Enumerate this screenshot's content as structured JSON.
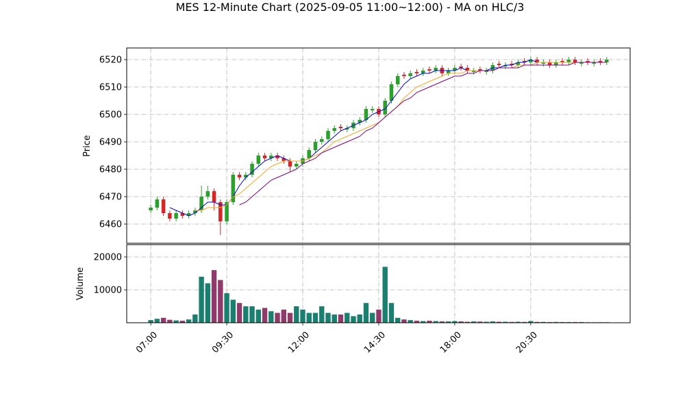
{
  "chart_data": [
    {
      "type": "candlestick",
      "title": "MES 12-Minute Chart (2025-09-05 11:00~12:00) - MA on HLC/3",
      "ylabel": "Price",
      "up_color": "#2ca02c",
      "down_color": "#d62728",
      "grid": true,
      "xlim": [
        -3.8,
        75.7
      ],
      "ylim": [
        6453,
        6524.25
      ],
      "yticks": [
        6460,
        6470,
        6480,
        6490,
        6500,
        6510,
        6520
      ],
      "open": [
        6465,
        6466,
        6469,
        6464,
        6462,
        6464,
        6463,
        6464,
        6465,
        6470,
        6472,
        6468,
        6461,
        6468,
        6478,
        6477,
        6478,
        6482,
        6485,
        6484,
        6485,
        6484,
        6483,
        6481,
        6482,
        6484,
        6487,
        6490,
        6491,
        6494,
        6495.5,
        6494.5,
        6495,
        6497,
        6498,
        6501.5,
        6502,
        6500,
        6505,
        6511,
        6514.5,
        6514,
        6515.5,
        6515,
        6516.5,
        6516,
        6517,
        6515,
        6516,
        6517.5,
        6517,
        6515.5,
        6516.5,
        6515.5,
        6516,
        6518.5,
        6517.5,
        6518.5,
        6518,
        6519.5,
        6519,
        6520,
        6518.5,
        6519,
        6518,
        6519.5,
        6519,
        6520,
        6518.5,
        6519.5,
        6518.5,
        6519.5,
        6519
      ],
      "high": [
        6467,
        6470,
        6470,
        6465,
        6465,
        6465,
        6465,
        6466,
        6474,
        6474,
        6473,
        6469,
        6469,
        6479,
        6479,
        6479,
        6483,
        6486,
        6486,
        6486,
        6486,
        6485,
        6484,
        6483,
        6485,
        6488,
        6491,
        6492,
        6495,
        6496,
        6496.5,
        6496,
        6498,
        6499,
        6503,
        6503,
        6503,
        6506,
        6512,
        6515,
        6515.5,
        6516,
        6516.5,
        6517,
        6517.5,
        6518,
        6518,
        6517,
        6518,
        6518.5,
        6518,
        6517,
        6517.5,
        6517,
        6519,
        6519.5,
        6519,
        6519.5,
        6520,
        6520.5,
        6521,
        6521,
        6520,
        6520,
        6520,
        6520.5,
        6521,
        6521,
        6520,
        6520.5,
        6520,
        6520.5,
        6521
      ],
      "low": [
        6464,
        6465,
        6463,
        6461,
        6461,
        6462,
        6462,
        6463,
        6464,
        6469,
        6465,
        6456,
        6460,
        6467,
        6476,
        6476,
        6477,
        6481,
        6483,
        6483,
        6483,
        6482,
        6479,
        6480,
        6481,
        6483,
        6486,
        6489,
        6490,
        6493,
        6494,
        6493.5,
        6494,
        6496,
        6497,
        6500.5,
        6499,
        6499,
        6504,
        6510,
        6513,
        6513,
        6514,
        6514,
        6515,
        6515,
        6514,
        6514,
        6515,
        6516,
        6515,
        6514.5,
        6515,
        6514.5,
        6515,
        6517,
        6516.5,
        6517,
        6517,
        6518,
        6518,
        6518,
        6517.5,
        6517,
        6517,
        6518,
        6518,
        6518,
        6517.5,
        6518,
        6517.5,
        6518,
        6518
      ],
      "close": [
        6466,
        6469,
        6464,
        6462,
        6464,
        6463,
        6464,
        6465,
        6470,
        6472,
        6468,
        6461,
        6468,
        6478,
        6477,
        6478,
        6482,
        6485,
        6484,
        6485,
        6484,
        6483,
        6481,
        6482,
        6484,
        6487,
        6490,
        6491,
        6494,
        6495,
        6495,
        6495,
        6497,
        6498,
        6502,
        6502,
        6500,
        6505,
        6511,
        6514,
        6514,
        6515,
        6515,
        6516,
        6516,
        6517,
        6515,
        6516,
        6517,
        6517,
        6516,
        6516,
        6516,
        6516,
        6518,
        6518,
        6518,
        6518,
        6519,
        6519,
        6520,
        6519,
        6519,
        6518,
        6519,
        6519,
        6520,
        6519,
        6519,
        6519,
        6519,
        6519,
        6520
      ],
      "series": [
        {
          "color": "#0000dd",
          "values": [
            null,
            null,
            null,
            6466,
            6465,
            6464,
            6463,
            6464,
            6466,
            6468,
            6468,
            6467,
            6467,
            6470,
            6474,
            6477,
            6479,
            6481,
            6483,
            6484,
            6485,
            6484,
            6483,
            6483,
            6483,
            6484,
            6486,
            6488,
            6490,
            6492,
            6494,
            6495,
            6496,
            6497,
            6498,
            6500,
            6501,
            6502,
            6505,
            6508,
            6511,
            6513,
            6514,
            6515,
            6515,
            6516,
            6516,
            6516,
            6516,
            6517,
            6516,
            6516,
            6516,
            6516,
            6517,
            6517,
            6518,
            6518,
            6519,
            6519,
            6520,
            6519,
            6519,
            6519,
            6519,
            6519,
            6519,
            6519,
            6519,
            6519,
            6519,
            6519,
            6519
          ]
        },
        {
          "color": "#f5a623",
          "values": [
            null,
            null,
            null,
            null,
            null,
            null,
            null,
            6465,
            6465,
            6466,
            6466,
            6466,
            6467,
            6470,
            6471,
            6473,
            6475,
            6477,
            6479,
            6481,
            6482,
            6483,
            6483,
            6483,
            6483,
            6484,
            6485,
            6486,
            6488,
            6490,
            6491,
            6492,
            6493,
            6494,
            6495,
            6496,
            6497,
            6499,
            6501,
            6503,
            6506,
            6508,
            6510,
            6511,
            6512,
            6513,
            6514,
            6515,
            6515,
            6515,
            6516,
            6516,
            6516,
            6516,
            6516,
            6517,
            6517,
            6517,
            6518,
            6518,
            6518,
            6519,
            6519,
            6519,
            6519,
            6519,
            6519,
            6519,
            6519,
            6519,
            6519,
            6519,
            6519
          ]
        },
        {
          "color": "#800080",
          "values": [
            null,
            null,
            null,
            null,
            null,
            null,
            null,
            null,
            null,
            null,
            null,
            null,
            null,
            null,
            6467,
            6468,
            6470,
            6472,
            6474,
            6476,
            6477,
            6478,
            6479,
            6480,
            6482,
            6483,
            6484,
            6486,
            6487,
            6488,
            6489,
            6490,
            6491,
            6492,
            6494,
            6495,
            6497,
            6499,
            6501,
            6503,
            6505,
            6506,
            6508,
            6509,
            6510,
            6511,
            6512,
            6513,
            6514,
            6514,
            6515,
            6515,
            6516,
            6516,
            6516,
            6517,
            6517,
            6517,
            6517,
            6518,
            6518,
            6518,
            6518,
            6518,
            6518,
            6518,
            6518,
            6519,
            6519,
            6519,
            6519,
            6519,
            6519
          ]
        }
      ]
    },
    {
      "type": "bar",
      "ylabel": "Volume",
      "up_color": "#1b7f70",
      "down_color": "#8e3a6a",
      "grid": true,
      "xlim": [
        -3.8,
        75.7
      ],
      "ylim": [
        0,
        23750
      ],
      "yticks": [
        10000,
        20000
      ],
      "categories": [
        "07:00",
        null,
        null,
        null,
        null,
        null,
        null,
        null,
        null,
        null,
        null,
        null,
        "09:30",
        null,
        null,
        null,
        null,
        null,
        null,
        null,
        null,
        null,
        null,
        null,
        "12:00",
        null,
        null,
        null,
        null,
        null,
        null,
        null,
        null,
        null,
        null,
        null,
        "14:30",
        null,
        null,
        null,
        null,
        null,
        null,
        null,
        null,
        null,
        null,
        null,
        "18:00",
        null,
        null,
        null,
        null,
        null,
        null,
        null,
        null,
        null,
        null,
        null,
        "20:30",
        null,
        null,
        null,
        null,
        null,
        null,
        null,
        null,
        null,
        null,
        null,
        null
      ],
      "values": [
        800,
        1200,
        1500,
        900,
        700,
        600,
        1000,
        2500,
        14000,
        12000,
        16000,
        13000,
        9000,
        7000,
        6000,
        5000,
        5000,
        4000,
        4500,
        3500,
        3000,
        4000,
        3000,
        5000,
        4000,
        3000,
        3000,
        5000,
        3000,
        2500,
        2500,
        3000,
        2000,
        2500,
        6000,
        3000,
        4000,
        17000,
        6000,
        1500,
        1000,
        800,
        600,
        500,
        600,
        500,
        400,
        400,
        500,
        400,
        300,
        400,
        350,
        300,
        400,
        300,
        300,
        250,
        300,
        250,
        500,
        250,
        250,
        200,
        250,
        200,
        200,
        200,
        200,
        150,
        150,
        150,
        150
      ]
    }
  ]
}
